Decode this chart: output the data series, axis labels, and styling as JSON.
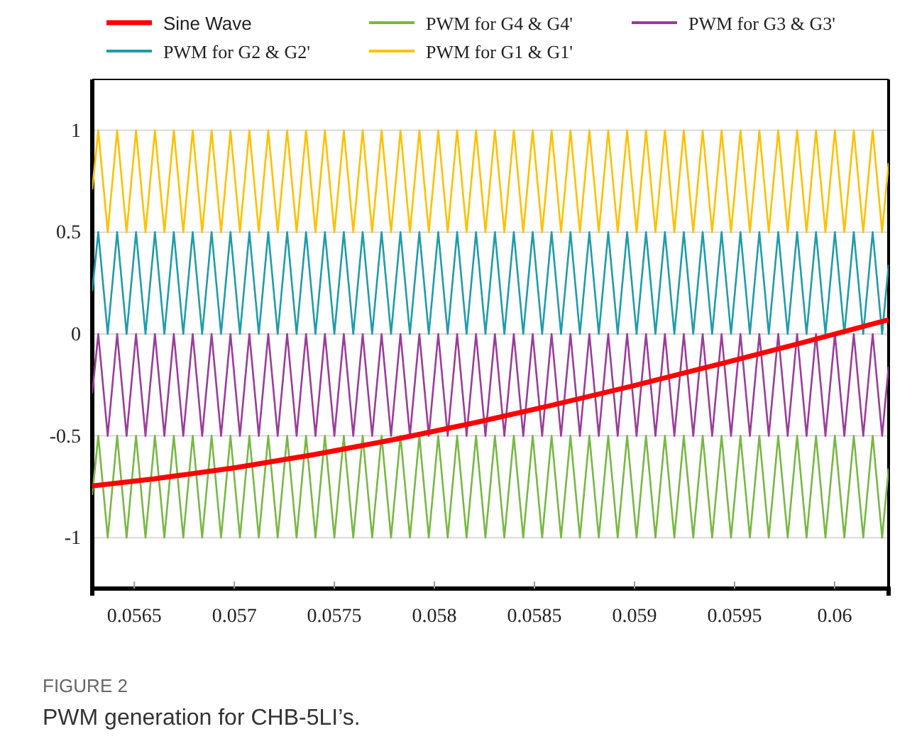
{
  "chart_data": {
    "type": "line",
    "xlim": [
      0.05629,
      0.06027
    ],
    "ylim": [
      -1.25,
      1.25
    ],
    "xticks": [
      0.0565,
      0.057,
      0.0575,
      0.058,
      0.0585,
      0.059,
      0.0595,
      0.06
    ],
    "yticks": [
      -1,
      -0.5,
      0,
      0.5,
      1
    ],
    "grid": "y",
    "legend": "top",
    "annotations": [
      "FIGURE 2",
      "PWM generation for CHB-5LI’s."
    ],
    "x": [
      0.05629,
      0.05632,
      0.0563672,
      0.0564144,
      0.0564616,
      0.0565088,
      0.056556,
      0.0566032,
      0.0566504,
      0.0566976,
      0.0567448,
      0.056792,
      0.0568392,
      0.0568864,
      0.0569336,
      0.0569808,
      0.057028,
      0.0570752,
      0.0571224,
      0.0571696,
      0.0572168,
      0.057264,
      0.0573112,
      0.0573584,
      0.0574056,
      0.0574528,
      0.0575,
      0.0575472,
      0.0575944,
      0.0576416,
      0.0576888,
      0.057736,
      0.0577832,
      0.0578304,
      0.0578776,
      0.0579248,
      0.057972,
      0.0580192,
      0.0580664,
      0.0581136,
      0.0581608,
      0.058208,
      0.0582552,
      0.0583024,
      0.0583496,
      0.0583968,
      0.058444,
      0.0584912,
      0.0585384,
      0.0585856,
      0.0586328,
      0.05868,
      0.0587272,
      0.0587744,
      0.0588216,
      0.0588688,
      0.058916,
      0.0589632,
      0.0590104,
      0.0590576,
      0.0591048,
      0.059152,
      0.0591992,
      0.0592464,
      0.0592936,
      0.0593408,
      0.059388,
      0.0594352,
      0.0594824,
      0.0595296,
      0.0595768,
      0.059624,
      0.0596712,
      0.0597184,
      0.0597656,
      0.0598128,
      0.05986,
      0.0599072,
      0.0599544,
      0.0600016,
      0.0600488,
      0.060096,
      0.0601432,
      0.0601904,
      0.0602376,
      0.06027
    ],
    "series": [
      {
        "name": "Sine Wave",
        "color": "#ff0000",
        "x": [
          0.05629,
          0.0566,
          0.057,
          0.0574,
          0.0578,
          0.0582,
          0.0586,
          0.059,
          0.0594,
          0.0598,
          0.06027
        ],
        "values": [
          -0.746,
          -0.711,
          -0.657,
          -0.592,
          -0.518,
          -0.436,
          -0.347,
          -0.253,
          -0.154,
          -0.053,
          0.07
        ]
      },
      {
        "name": "PWM for G4 & G4'",
        "color": "#77b843",
        "values": [
          -0.79,
          -0.5,
          -1,
          -0.5,
          -1,
          -0.5,
          -1,
          -0.5,
          -1,
          -0.5,
          -1,
          -0.5,
          -1,
          -0.5,
          -1,
          -0.5,
          -1,
          -0.5,
          -1,
          -0.5,
          -1,
          -0.5,
          -1,
          -0.5,
          -1,
          -0.5,
          -1,
          -0.5,
          -1,
          -0.5,
          -1,
          -0.5,
          -1,
          -0.5,
          -1,
          -0.5,
          -1,
          -0.5,
          -1,
          -0.5,
          -1,
          -0.5,
          -1,
          -0.5,
          -1,
          -0.5,
          -1,
          -0.5,
          -1,
          -0.5,
          -1,
          -0.5,
          -1,
          -0.5,
          -1,
          -0.5,
          -1,
          -0.5,
          -1,
          -0.5,
          -1,
          -0.5,
          -1,
          -0.5,
          -1,
          -0.5,
          -1,
          -0.5,
          -1,
          -0.5,
          -1,
          -0.5,
          -1,
          -0.5,
          -1,
          -0.5,
          -1,
          -0.5,
          -1,
          -0.5,
          -1,
          -0.5,
          -1,
          -0.5,
          -1,
          -0.66
        ]
      },
      {
        "name": "PWM for G3 & G3'",
        "color": "#9b3c9b",
        "values": [
          -0.29,
          0,
          -0.5,
          0,
          -0.5,
          0,
          -0.5,
          0,
          -0.5,
          0,
          -0.5,
          0,
          -0.5,
          0,
          -0.5,
          0,
          -0.5,
          0,
          -0.5,
          0,
          -0.5,
          0,
          -0.5,
          0,
          -0.5,
          0,
          -0.5,
          0,
          -0.5,
          0,
          -0.5,
          0,
          -0.5,
          0,
          -0.5,
          0,
          -0.5,
          0,
          -0.5,
          0,
          -0.5,
          0,
          -0.5,
          0,
          -0.5,
          0,
          -0.5,
          0,
          -0.5,
          0,
          -0.5,
          0,
          -0.5,
          0,
          -0.5,
          0,
          -0.5,
          0,
          -0.5,
          0,
          -0.5,
          0,
          -0.5,
          0,
          -0.5,
          0,
          -0.5,
          0,
          -0.5,
          0,
          -0.5,
          0,
          -0.5,
          0,
          -0.5,
          0,
          -0.5,
          0,
          -0.5,
          0,
          -0.5,
          0,
          -0.5,
          0,
          -0.5,
          -0.16
        ]
      },
      {
        "name": "PWM for G2 & G2'",
        "color": "#1f9bab",
        "values": [
          0.21,
          0.5,
          0,
          0.5,
          0,
          0.5,
          0,
          0.5,
          0,
          0.5,
          0,
          0.5,
          0,
          0.5,
          0,
          0.5,
          0,
          0.5,
          0,
          0.5,
          0,
          0.5,
          0,
          0.5,
          0,
          0.5,
          0,
          0.5,
          0,
          0.5,
          0,
          0.5,
          0,
          0.5,
          0,
          0.5,
          0,
          0.5,
          0,
          0.5,
          0,
          0.5,
          0,
          0.5,
          0,
          0.5,
          0,
          0.5,
          0,
          0.5,
          0,
          0.5,
          0,
          0.5,
          0,
          0.5,
          0,
          0.5,
          0,
          0.5,
          0,
          0.5,
          0,
          0.5,
          0,
          0.5,
          0,
          0.5,
          0,
          0.5,
          0,
          0.5,
          0,
          0.5,
          0,
          0.5,
          0,
          0.5,
          0,
          0.5,
          0,
          0.5,
          0,
          0.5,
          0,
          0.34
        ]
      },
      {
        "name": "PWM for G1 & G1'",
        "color": "#ffc000",
        "values": [
          0.71,
          1,
          0.5,
          1,
          0.5,
          1,
          0.5,
          1,
          0.5,
          1,
          0.5,
          1,
          0.5,
          1,
          0.5,
          1,
          0.5,
          1,
          0.5,
          1,
          0.5,
          1,
          0.5,
          1,
          0.5,
          1,
          0.5,
          1,
          0.5,
          1,
          0.5,
          1,
          0.5,
          1,
          0.5,
          1,
          0.5,
          1,
          0.5,
          1,
          0.5,
          1,
          0.5,
          1,
          0.5,
          1,
          0.5,
          1,
          0.5,
          1,
          0.5,
          1,
          0.5,
          1,
          0.5,
          1,
          0.5,
          1,
          0.5,
          1,
          0.5,
          1,
          0.5,
          1,
          0.5,
          1,
          0.5,
          1,
          0.5,
          1,
          0.5,
          1,
          0.5,
          1,
          0.5,
          1,
          0.5,
          1,
          0.5,
          1,
          0.5,
          1,
          0.5,
          1,
          0.5,
          0.84
        ]
      }
    ]
  }
}
